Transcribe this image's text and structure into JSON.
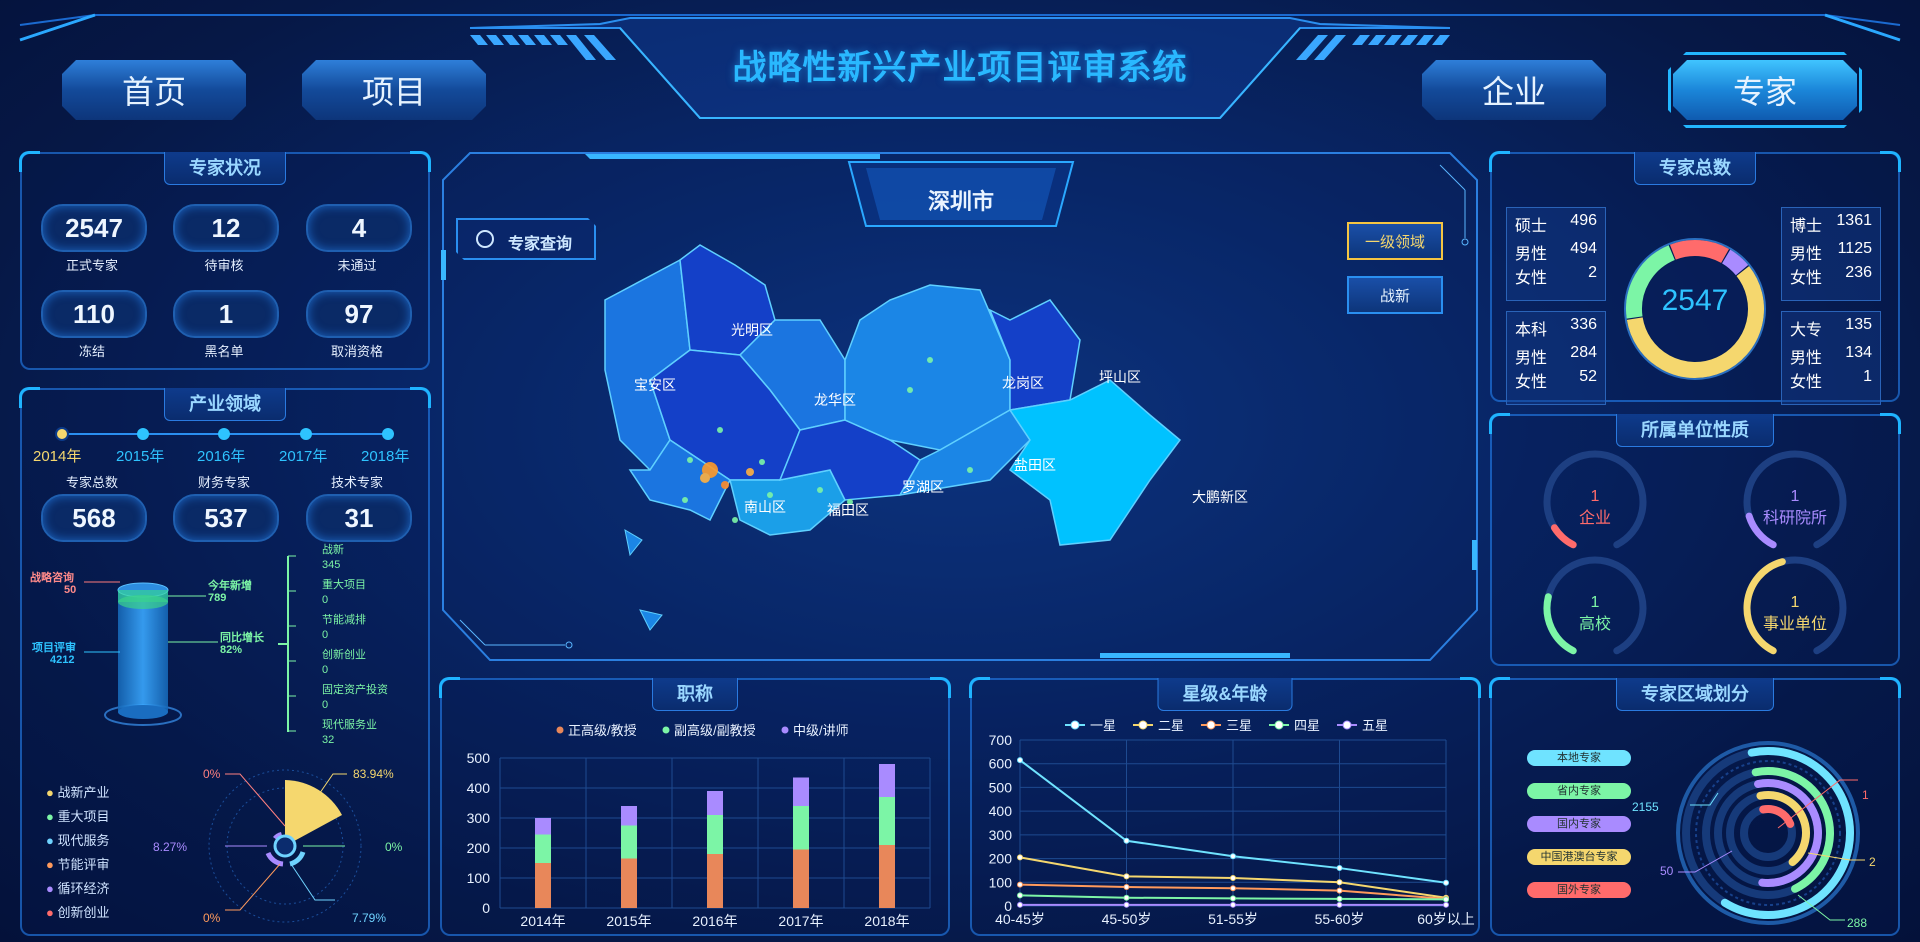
{
  "header": {
    "title": "战略性新兴产业项目评审系统",
    "nav": [
      {
        "label": "首页"
      },
      {
        "label": "项目"
      },
      {
        "label": "企业"
      },
      {
        "label": "专家"
      }
    ],
    "active": "专家"
  },
  "expert_status": {
    "title": "专家状况",
    "stats": [
      {
        "value": "2547",
        "label": "正式专家"
      },
      {
        "value": "12",
        "label": "待审核"
      },
      {
        "value": "4",
        "label": "未通过"
      },
      {
        "value": "110",
        "label": "冻结"
      },
      {
        "value": "1",
        "label": "黑名单"
      },
      {
        "value": "97",
        "label": "取消资格"
      }
    ]
  },
  "industry": {
    "title": "产业领域",
    "years": [
      "2014年",
      "2015年",
      "2016年",
      "2017年",
      "2018年"
    ],
    "selected_year": "2014年",
    "counters": [
      {
        "label": "专家总数",
        "value": "568"
      },
      {
        "label": "财务专家",
        "value": "537"
      },
      {
        "label": "技术专家",
        "value": "31"
      }
    ],
    "cylinder": {
      "top_left_label": "战略咨询",
      "top_left_value": "50",
      "bottom_left_label": "项目评审",
      "bottom_left_value": "4212",
      "right1_label": "今年新增",
      "right1_value": "789",
      "right2_label": "同比增长",
      "right2_value": "82%"
    },
    "tree": [
      {
        "label": "战新",
        "value": "345"
      },
      {
        "label": "重大项目",
        "value": "0"
      },
      {
        "label": "节能减排",
        "value": "0"
      },
      {
        "label": "创新创业",
        "value": "0"
      },
      {
        "label": "固定资产投资",
        "value": "0"
      },
      {
        "label": "现代服务业",
        "value": "32"
      }
    ],
    "legend": [
      {
        "label": "战新产业",
        "color": "#f5d76e"
      },
      {
        "label": "重大项目",
        "color": "#7cf5a6"
      },
      {
        "label": "现代服务",
        "color": "#6fd3ff"
      },
      {
        "label": "节能评审",
        "color": "#ff9a5c"
      },
      {
        "label": "循环经济",
        "color": "#a98bff"
      },
      {
        "label": "创新创业",
        "color": "#ff6b6b"
      }
    ],
    "pie_labels": [
      {
        "text": "0%",
        "color": "#ff8080"
      },
      {
        "text": "83.94%",
        "color": "#f5d76e"
      },
      {
        "text": "0%",
        "color": "#7cf5a6"
      },
      {
        "text": "7.79%",
        "color": "#6fd3ff"
      },
      {
        "text": "0%",
        "color": "#ff9a5c"
      },
      {
        "text": "8.27%",
        "color": "#a98bff"
      }
    ]
  },
  "map": {
    "city": "深圳市",
    "search_label": "专家查询",
    "level_btn": "一级领域",
    "category_btn": "战新",
    "districts": [
      "宝安区",
      "光明区",
      "龙华区",
      "龙岗区",
      "坪山区",
      "盐田区",
      "罗湖区",
      "福田区",
      "南山区",
      "大鹏新区"
    ]
  },
  "expert_total": {
    "title": "专家总数",
    "total": "2547",
    "groups": [
      {
        "degree": "硕士",
        "count": "496",
        "male_label": "男性",
        "male": "494",
        "female_label": "女性",
        "female": "2"
      },
      {
        "degree": "博士",
        "count": "1361",
        "male_label": "男性",
        "male": "1125",
        "female_label": "女性",
        "female": "236"
      },
      {
        "degree": "本科",
        "count": "336",
        "male_label": "男性",
        "male": "284",
        "female_label": "女性",
        "female": "52"
      },
      {
        "degree": "大专",
        "count": "135",
        "male_label": "男性",
        "male": "134",
        "female_label": "女性",
        "female": "1"
      }
    ],
    "ring": [
      {
        "name": "博士",
        "value": 1361,
        "color": "#f5d76e"
      },
      {
        "name": "硕士",
        "value": 496,
        "color": "#7cf5a6"
      },
      {
        "name": "本科",
        "value": 336,
        "color": "#ff6b6b"
      },
      {
        "name": "大专",
        "value": 135,
        "color": "#a98bff"
      }
    ],
    "colors": {
      "accent": "#2ec3ff"
    }
  },
  "unit_type": {
    "title": "所属单位性质",
    "items": [
      {
        "value": "1",
        "label": "企业",
        "color": "#ff6b6b",
        "level": 0.1
      },
      {
        "value": "1",
        "label": "科研院所",
        "color": "#a98bff",
        "level": 0.15
      },
      {
        "value": "1",
        "label": "高校",
        "color": "#7cf5a6",
        "level": 0.25
      },
      {
        "value": "1",
        "label": "事业单位",
        "color": "#f5d76e",
        "level": 0.45
      }
    ]
  },
  "titles_chart": {
    "title": "职称",
    "chart_data": {
      "type": "bar",
      "stacked": true,
      "categories": [
        "2014年",
        "2015年",
        "2016年",
        "2017年",
        "2018年"
      ],
      "series": [
        {
          "name": "正高级/教授",
          "values": [
            150,
            165,
            180,
            195,
            210
          ],
          "color": "#e8875a"
        },
        {
          "name": "副高级/副教授",
          "values": [
            95,
            110,
            130,
            145,
            160
          ],
          "color": "#7cf5a6"
        },
        {
          "name": "中级/讲师",
          "values": [
            55,
            65,
            80,
            95,
            110
          ],
          "color": "#a98bff"
        }
      ],
      "ylim": [
        0,
        500
      ],
      "yticks": [
        "0",
        "100",
        "200",
        "300",
        "400",
        "500"
      ],
      "grid": true,
      "legend": "top"
    }
  },
  "star_age_chart": {
    "title": "星级&年龄",
    "chart_data": {
      "type": "line",
      "x": [
        "40-45岁",
        "45-50岁",
        "51-55岁",
        "55-60岁",
        "60岁以上"
      ],
      "series": [
        {
          "name": "一星",
          "values": [
            615,
            275,
            210,
            160,
            98
          ],
          "color": "#6fe3ff"
        },
        {
          "name": "二星",
          "values": [
            205,
            125,
            118,
            100,
            35
          ],
          "color": "#f5d76e"
        },
        {
          "name": "三星",
          "values": [
            90,
            80,
            75,
            65,
            30
          ],
          "color": "#ff9a5c"
        },
        {
          "name": "四星",
          "values": [
            45,
            35,
            32,
            30,
            28
          ],
          "color": "#7cf5a6"
        },
        {
          "name": "五星",
          "values": [
            5,
            5,
            5,
            5,
            5
          ],
          "color": "#a98bff"
        }
      ],
      "ylim": [
        0,
        700
      ],
      "yticks": [
        "0",
        "100",
        "200",
        "300",
        "400",
        "500",
        "600",
        "700"
      ],
      "grid": true,
      "legend": "top"
    }
  },
  "region": {
    "title": "专家区域划分",
    "legend": [
      {
        "label": "本地专家",
        "color": "#6fe3ff"
      },
      {
        "label": "省内专家",
        "color": "#7cf5a6"
      },
      {
        "label": "国内专家",
        "color": "#a98bff"
      },
      {
        "label": "中国港澳台专家",
        "color": "#f5d76e"
      },
      {
        "label": "国外专家",
        "color": "#ff6b6b"
      }
    ],
    "chart_data": {
      "type": "pie",
      "categories": [
        "本地专家",
        "省内专家",
        "国内专家",
        "中国港澳台专家",
        "国外专家"
      ],
      "values": [
        2155,
        288,
        50,
        2,
        1
      ]
    },
    "labels": [
      "2155",
      "1",
      "2",
      "50",
      "288"
    ]
  }
}
